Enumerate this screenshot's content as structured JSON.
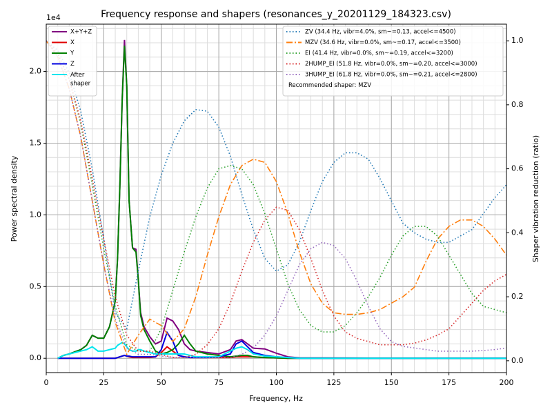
{
  "chart_data": {
    "type": "line",
    "title": "Frequency response and shapers (resonances_y_20201129_184323.csv)",
    "xlabel": "Frequency, Hz",
    "ylabel": "Power spectral density",
    "y2label": "Shaper vibration reduction (ratio)",
    "y_offset_label": "1e4",
    "xlim": [
      0,
      200
    ],
    "xticks": [
      0,
      25,
      50,
      75,
      100,
      125,
      150,
      175,
      200
    ],
    "ylim": [
      -0.1,
      2.33
    ],
    "yticks": [
      {
        "value": 0,
        "label": "0.0"
      },
      {
        "value": 0.5,
        "label": "0.5"
      },
      {
        "value": 1,
        "label": "1.0"
      },
      {
        "value": 1.5,
        "label": "1.5"
      },
      {
        "value": 2,
        "label": "2.0"
      }
    ],
    "y2lim": [
      -0.037,
      1.052
    ],
    "y2ticks": [
      {
        "value": 0,
        "label": "0.0"
      },
      {
        "value": 0.2,
        "label": "0.2"
      },
      {
        "value": 0.4,
        "label": "0.4"
      },
      {
        "value": 0.6,
        "label": "0.6"
      },
      {
        "value": 0.8,
        "label": "0.8"
      },
      {
        "value": 1,
        "label": "1.0"
      }
    ],
    "grid": true,
    "x_minor_step": 5,
    "y_minor_step": 0.1,
    "legend": "upper left",
    "y2_legend": "upper right",
    "annotation": "Recommended shaper: MZV",
    "series": [
      {
        "name": "X+Y+Z",
        "color": "#800080",
        "style": "solid",
        "axis": "y",
        "x": [
          5,
          7.5,
          10,
          12.5,
          15,
          17.5,
          20,
          22.5,
          25,
          27.5,
          30,
          31,
          32,
          33,
          34,
          35,
          36,
          37.5,
          39,
          40,
          41,
          42.5,
          45,
          47.5,
          50,
          52.5,
          55,
          57.5,
          60,
          62.5,
          65,
          70,
          75,
          80,
          82.5,
          85,
          87.5,
          90,
          95,
          100,
          105,
          110,
          120,
          140,
          160,
          180,
          200
        ],
        "values": [
          0.0,
          0.02,
          0.03,
          0.045,
          0.06,
          0.09,
          0.16,
          0.14,
          0.14,
          0.22,
          0.4,
          0.7,
          1.2,
          1.8,
          2.22,
          1.9,
          1.1,
          0.77,
          0.76,
          0.55,
          0.32,
          0.22,
          0.15,
          0.1,
          0.12,
          0.28,
          0.26,
          0.2,
          0.1,
          0.06,
          0.05,
          0.04,
          0.03,
          0.06,
          0.12,
          0.13,
          0.1,
          0.07,
          0.065,
          0.035,
          0.01,
          0.003,
          0.002,
          0.001,
          0.001,
          0.001,
          0.001
        ]
      },
      {
        "name": "X",
        "color": "#e00000",
        "style": "solid",
        "axis": "y",
        "x": [
          5,
          7.5,
          10,
          12.5,
          15,
          17.5,
          20,
          22.5,
          25,
          27.5,
          30,
          31,
          32,
          33,
          34,
          35,
          36,
          37.5,
          39,
          40,
          41,
          42.5,
          45,
          47.5,
          50,
          52.5,
          55,
          57.5,
          60,
          62.5,
          65,
          70,
          75,
          80,
          82.5,
          85,
          87.5,
          90,
          95,
          100,
          105,
          110,
          120,
          140,
          160,
          180,
          200
        ],
        "values": [
          0,
          0,
          0,
          0,
          0,
          0,
          0,
          0,
          0,
          0,
          0,
          0.005,
          0.01,
          0.015,
          0.02,
          0.015,
          0.01,
          0.005,
          0.005,
          0.005,
          0.005,
          0.005,
          0.005,
          0.01,
          0.04,
          0.08,
          0.05,
          0.02,
          0.01,
          0.005,
          0.005,
          0.005,
          0.005,
          0.005,
          0.01,
          0.01,
          0.01,
          0.01,
          0.005,
          0.003,
          0,
          0,
          0,
          0,
          0,
          0,
          0
        ]
      },
      {
        "name": "Y",
        "color": "#008000",
        "style": "solid",
        "axis": "y",
        "x": [
          5,
          7.5,
          10,
          12.5,
          15,
          17.5,
          20,
          22.5,
          25,
          27.5,
          30,
          31,
          32,
          33,
          34,
          35,
          36,
          37.5,
          39,
          40,
          41,
          42.5,
          45,
          47.5,
          50,
          52.5,
          55,
          57.5,
          60,
          62.5,
          65,
          70,
          75,
          80,
          82.5,
          85,
          87.5,
          90,
          95,
          100,
          105,
          110,
          120,
          140,
          160,
          180,
          200
        ],
        "values": [
          0.0,
          0.02,
          0.03,
          0.045,
          0.06,
          0.09,
          0.16,
          0.14,
          0.14,
          0.22,
          0.4,
          0.7,
          1.2,
          1.8,
          2.18,
          1.9,
          1.1,
          0.77,
          0.74,
          0.55,
          0.3,
          0.2,
          0.12,
          0.05,
          0.03,
          0.04,
          0.06,
          0.1,
          0.16,
          0.1,
          0.05,
          0.03,
          0.02,
          0.01,
          0.015,
          0.02,
          0.02,
          0.01,
          0.005,
          0.003,
          0,
          0,
          0,
          0,
          0,
          0,
          0
        ]
      },
      {
        "name": "Z",
        "color": "#0000e0",
        "style": "solid",
        "axis": "y",
        "x": [
          5,
          7.5,
          10,
          12.5,
          15,
          17.5,
          20,
          22.5,
          25,
          27.5,
          30,
          31,
          32,
          33,
          34,
          35,
          36,
          37.5,
          39,
          40,
          41,
          42.5,
          45,
          47.5,
          50,
          52.5,
          55,
          57.5,
          60,
          62.5,
          65,
          70,
          75,
          80,
          82.5,
          85,
          87.5,
          90,
          95,
          100,
          105,
          110,
          120,
          140,
          160,
          180,
          200
        ],
        "values": [
          0,
          0,
          0,
          0,
          0,
          0,
          0,
          0,
          0,
          0,
          0,
          0.005,
          0.01,
          0.015,
          0.02,
          0.015,
          0.015,
          0.01,
          0.01,
          0.01,
          0.01,
          0.01,
          0.01,
          0.01,
          0.06,
          0.18,
          0.12,
          0.02,
          0.01,
          0.005,
          0.005,
          0.005,
          0.01,
          0.03,
          0.1,
          0.12,
          0.08,
          0.04,
          0.02,
          0.01,
          0.005,
          0,
          0,
          0,
          0,
          0,
          0
        ]
      },
      {
        "name": "After shaper",
        "color": "#00e5ee",
        "style": "solid",
        "axis": "y",
        "x": [
          5,
          7.5,
          10,
          12.5,
          15,
          17.5,
          20,
          22.5,
          25,
          27.5,
          30,
          31,
          32,
          33,
          34,
          35,
          36,
          37.5,
          39,
          40,
          41,
          42.5,
          45,
          47.5,
          50,
          52.5,
          55,
          57.5,
          60,
          62.5,
          65,
          70,
          75,
          80,
          82.5,
          85,
          87.5,
          90,
          95,
          100,
          105,
          110,
          120,
          140,
          160,
          180,
          200
        ],
        "values": [
          0,
          0.02,
          0.03,
          0.04,
          0.05,
          0.06,
          0.08,
          0.05,
          0.05,
          0.06,
          0.07,
          0.09,
          0.1,
          0.11,
          0.1,
          0.08,
          0.06,
          0.05,
          0.05,
          0.06,
          0.06,
          0.05,
          0.04,
          0.03,
          0.03,
          0.03,
          0.03,
          0.03,
          0.03,
          0.02,
          0.01,
          0.01,
          0.01,
          0.05,
          0.07,
          0.08,
          0.06,
          0.03,
          0.015,
          0.01,
          0.005,
          0,
          0,
          0,
          0,
          0,
          0
        ]
      },
      {
        "name": "ZV (34.4 Hz, vibr=4.0%, sm~=0.13, accel<=4500)",
        "color": "#1f77b4",
        "style": "dotted",
        "axis": "y2",
        "x": [
          0,
          5,
          10,
          15,
          20,
          25,
          30,
          35,
          40,
          45,
          50,
          55,
          60,
          65,
          70,
          75,
          80,
          85,
          90,
          95,
          100,
          105,
          110,
          115,
          120,
          125,
          130,
          135,
          140,
          145,
          150,
          155,
          160,
          165,
          170,
          175,
          180,
          185,
          190,
          195,
          200
        ],
        "values": [
          1.0,
          0.97,
          0.9,
          0.78,
          0.6,
          0.38,
          0.15,
          0.1,
          0.28,
          0.45,
          0.58,
          0.68,
          0.75,
          0.785,
          0.78,
          0.73,
          0.64,
          0.52,
          0.41,
          0.32,
          0.28,
          0.3,
          0.37,
          0.47,
          0.56,
          0.62,
          0.65,
          0.65,
          0.63,
          0.57,
          0.5,
          0.43,
          0.4,
          0.38,
          0.37,
          0.37,
          0.39,
          0.41,
          0.46,
          0.51,
          0.55
        ]
      },
      {
        "name": "MZV (34.6 Hz, vibr=0.0%, sm~=0.17, accel<=3500)",
        "color": "#ff7f0e",
        "style": "dashdot",
        "axis": "y2",
        "x": [
          0,
          5,
          10,
          15,
          20,
          25,
          30,
          35,
          40,
          45,
          50,
          55,
          60,
          65,
          70,
          75,
          80,
          85,
          90,
          95,
          100,
          105,
          110,
          115,
          120,
          125,
          130,
          135,
          140,
          145,
          150,
          155,
          160,
          165,
          170,
          175,
          180,
          185,
          190,
          195,
          200
        ],
        "values": [
          1.0,
          0.95,
          0.85,
          0.7,
          0.5,
          0.3,
          0.12,
          0.02,
          0.08,
          0.13,
          0.11,
          0.06,
          0.1,
          0.2,
          0.33,
          0.45,
          0.55,
          0.61,
          0.63,
          0.62,
          0.56,
          0.46,
          0.34,
          0.24,
          0.18,
          0.15,
          0.145,
          0.145,
          0.15,
          0.16,
          0.18,
          0.2,
          0.23,
          0.31,
          0.38,
          0.42,
          0.44,
          0.44,
          0.42,
          0.38,
          0.33
        ]
      },
      {
        "name": "EI (41.4 Hz, vibr=0.0%, sm~=0.19, accel<=3200)",
        "color": "#2ca02c",
        "style": "dotted",
        "axis": "y2",
        "x": [
          0,
          5,
          10,
          15,
          20,
          25,
          30,
          35,
          40,
          45,
          50,
          55,
          60,
          65,
          70,
          75,
          80,
          85,
          90,
          95,
          100,
          105,
          110,
          115,
          120,
          125,
          130,
          135,
          140,
          145,
          150,
          155,
          160,
          165,
          170,
          175,
          180,
          185,
          190,
          195,
          200
        ],
        "values": [
          1.0,
          0.96,
          0.88,
          0.74,
          0.55,
          0.35,
          0.17,
          0.05,
          0.03,
          0.03,
          0.1,
          0.22,
          0.34,
          0.45,
          0.54,
          0.6,
          0.61,
          0.6,
          0.55,
          0.46,
          0.35,
          0.24,
          0.16,
          0.11,
          0.09,
          0.09,
          0.11,
          0.15,
          0.2,
          0.26,
          0.33,
          0.39,
          0.42,
          0.42,
          0.39,
          0.33,
          0.27,
          0.21,
          0.17,
          0.16,
          0.15
        ]
      },
      {
        "name": "2HUMP_EI (51.8 Hz, vibr=0.0%, sm~=0.20, accel<=3000)",
        "color": "#d62728",
        "style": "dotted",
        "axis": "y2",
        "x": [
          0,
          5,
          10,
          15,
          20,
          25,
          30,
          35,
          40,
          45,
          50,
          55,
          60,
          65,
          70,
          75,
          80,
          85,
          90,
          95,
          100,
          105,
          110,
          115,
          120,
          125,
          130,
          135,
          140,
          145,
          150,
          155,
          160,
          165,
          170,
          175,
          180,
          185,
          190,
          195,
          200
        ],
        "values": [
          1.0,
          0.96,
          0.88,
          0.75,
          0.57,
          0.38,
          0.2,
          0.08,
          0.03,
          0.03,
          0.02,
          0.01,
          0.01,
          0.02,
          0.05,
          0.1,
          0.18,
          0.28,
          0.37,
          0.44,
          0.48,
          0.47,
          0.41,
          0.32,
          0.22,
          0.14,
          0.09,
          0.07,
          0.06,
          0.05,
          0.05,
          0.05,
          0.055,
          0.065,
          0.08,
          0.1,
          0.14,
          0.18,
          0.22,
          0.25,
          0.27
        ]
      },
      {
        "name": "3HUMP_EI (61.8 Hz, vibr=0.0%, sm~=0.21, accel<=2800)",
        "color": "#9467bd",
        "style": "dotted",
        "axis": "y2",
        "x": [
          0,
          5,
          10,
          15,
          20,
          25,
          30,
          35,
          40,
          45,
          50,
          55,
          60,
          65,
          70,
          75,
          80,
          85,
          90,
          95,
          100,
          105,
          110,
          115,
          120,
          125,
          130,
          135,
          140,
          145,
          150,
          155,
          160,
          165,
          170,
          175,
          180,
          185,
          190,
          195,
          200
        ],
        "values": [
          1.0,
          0.95,
          0.85,
          0.7,
          0.5,
          0.3,
          0.13,
          0.04,
          0.02,
          0.02,
          0.015,
          0.01,
          0.01,
          0.01,
          0.01,
          0.01,
          0.01,
          0.02,
          0.04,
          0.08,
          0.14,
          0.22,
          0.3,
          0.35,
          0.37,
          0.36,
          0.32,
          0.25,
          0.17,
          0.1,
          0.06,
          0.045,
          0.04,
          0.035,
          0.03,
          0.03,
          0.03,
          0.03,
          0.032,
          0.035,
          0.04
        ]
      }
    ]
  }
}
